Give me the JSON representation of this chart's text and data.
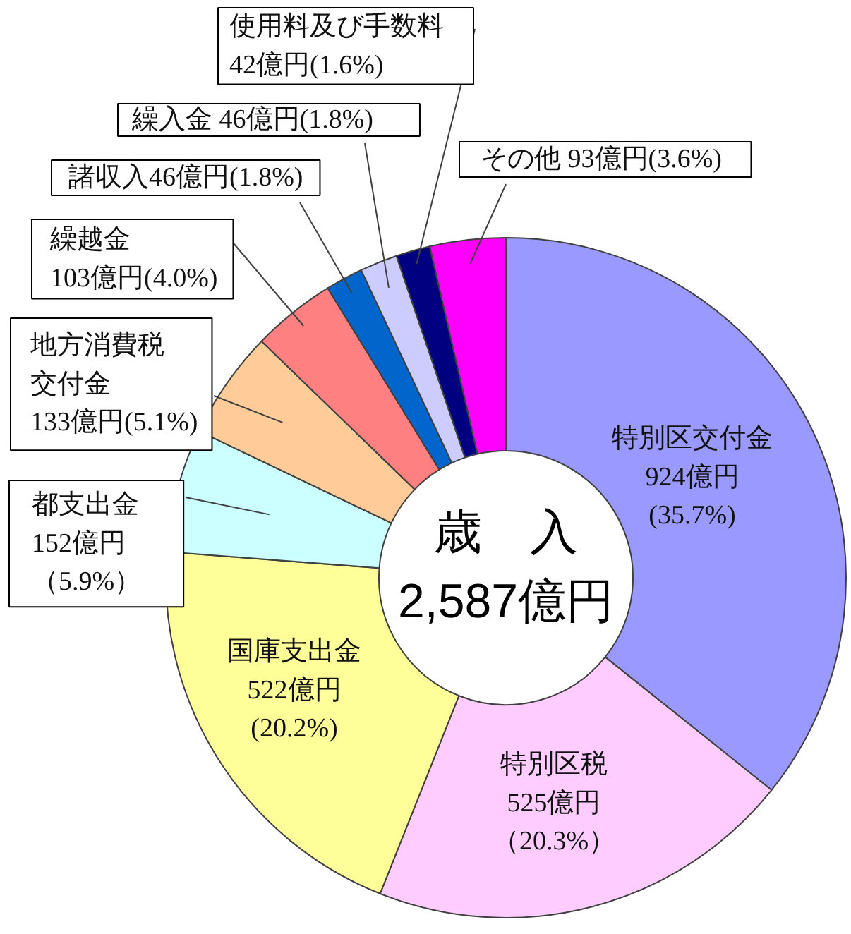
{
  "chart_data": {
    "type": "donut",
    "categories": [
      "特別区交付金",
      "特別区税",
      "国庫支出金",
      "都支出金",
      "地方消費税交付金",
      "繰越金",
      "諸収入",
      "繰入金",
      "使用料及び手数料",
      "その他"
    ],
    "values": [
      924,
      525,
      522,
      152,
      133,
      103,
      46,
      46,
      42,
      93
    ],
    "colors": [
      "#9999ff",
      "#ffccff",
      "#ffff99",
      "#ccffff",
      "#ffcc99",
      "#ff8080",
      "#0066cc",
      "#ccccff",
      "#000080",
      "#ff00ff"
    ],
    "value_labels": [
      "924億円\n(35.7%)",
      "525億円（20.3%）",
      "522億円\n(20.2%)",
      "152億円（5.9%）",
      "133億円(5.1%)",
      "103億円(4.0%)",
      "46億円(1.8%)",
      "46億円(1.8%)",
      "42億円(1.6%)",
      "93億円(3.6%)"
    ],
    "annotations": [
      "歳　入",
      "2,587億円"
    ]
  }
}
